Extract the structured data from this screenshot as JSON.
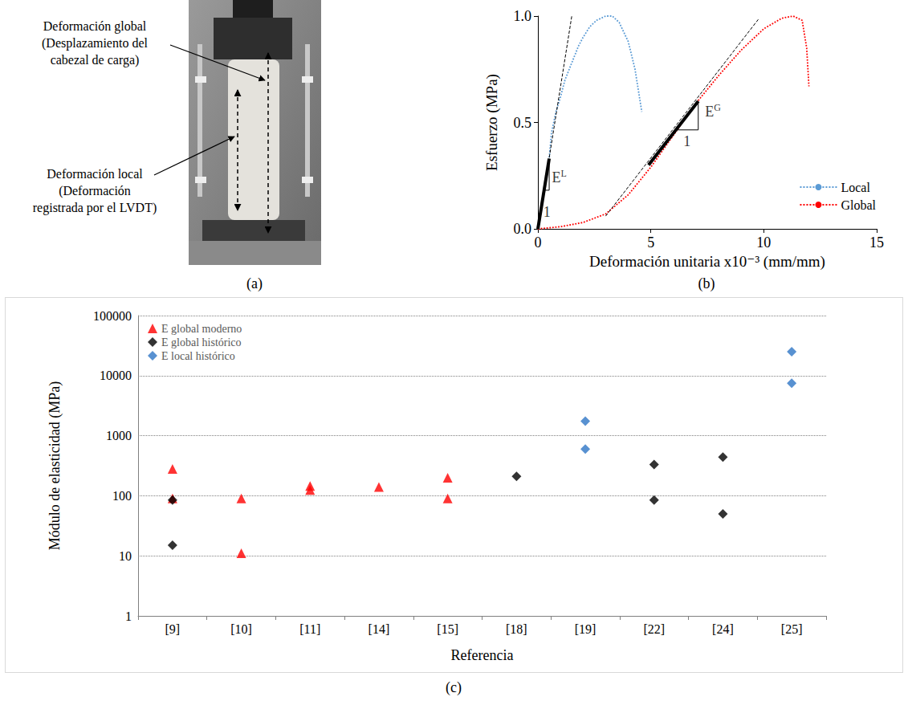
{
  "photo": {
    "caption": "(a)",
    "annotations": [
      {
        "lines": [
          "Deformación global",
          "(Desplazamiento del",
          "cabezal de carga)"
        ]
      },
      {
        "lines": [
          "Deformación local",
          "(Deformación",
          "registrada por el LVDT)"
        ]
      }
    ]
  },
  "chart_data": [
    {
      "type": "line",
      "caption": "(b)",
      "x_label": "Deformación unitaria x10⁻³ (mm/mm)",
      "y_label": "Esfuerzo (MPa)",
      "xlim": [
        0,
        15
      ],
      "xticks": [
        0,
        5,
        10,
        15
      ],
      "ylim": [
        0,
        1
      ],
      "yticks": [
        {
          "value": 0,
          "label": "0.0"
        },
        0.5,
        {
          "value": 1,
          "label": "1.0"
        }
      ],
      "grid": false,
      "legend": "lower right",
      "series": [
        {
          "name": "Local",
          "color": "#5b9bd5",
          "line_style": "dotted",
          "x": [
            0,
            0.5,
            0.6,
            0.8,
            1.0,
            1.2,
            1.5,
            1.8,
            2.0,
            2.3,
            2.6,
            3.0,
            3.3,
            3.6,
            4.0,
            4.3,
            4.6
          ],
          "values": [
            0,
            0.33,
            0.45,
            0.55,
            0.62,
            0.7,
            0.78,
            0.86,
            0.9,
            0.95,
            0.98,
            1.0,
            1.0,
            0.97,
            0.88,
            0.75,
            0.55
          ]
        },
        {
          "name": "Global",
          "color": "#ff0000",
          "line_style": "dotted",
          "x": [
            0,
            1,
            2,
            3,
            4,
            5,
            6,
            7,
            8,
            9,
            10,
            10.8,
            11.3,
            11.7,
            11.9,
            12.0
          ],
          "values": [
            0,
            0.01,
            0.03,
            0.07,
            0.16,
            0.29,
            0.44,
            0.59,
            0.72,
            0.84,
            0.94,
            0.99,
            1.0,
            0.98,
            0.85,
            0.67
          ]
        },
        {
          "color": "#000000",
          "line_style": "dashed",
          "x": [
            0,
            1.5
          ],
          "values": [
            0,
            1.0
          ]
        },
        {
          "color": "#000000",
          "line_style": "dashed",
          "x": [
            3.0,
            9.8
          ],
          "values": [
            0.06,
            0.99
          ]
        },
        {
          "color": "#000000",
          "line_style": "thick",
          "x": [
            0,
            0.5
          ],
          "values": [
            0,
            0.33
          ]
        },
        {
          "color": "#000000",
          "line_style": "thick",
          "x": [
            4.9,
            7.1
          ],
          "values": [
            0.3,
            0.6
          ]
        }
      ],
      "annotations": [
        {
          "text": "E",
          "sup": "L",
          "x": 0.95,
          "y": 0.24
        },
        {
          "text": "1",
          "x": 0.4,
          "y": 0.08
        },
        {
          "text": "E",
          "sup": "G",
          "x": 7.75,
          "y": 0.55
        },
        {
          "text": "1",
          "x": 6.6,
          "y": 0.41
        }
      ]
    },
    {
      "type": "scatter",
      "caption": "(c)",
      "x_label": "Referencia",
      "y_label": "Módulo de elasticidad (MPa)",
      "categories": [
        "[9]",
        "[10]",
        "[11]",
        "[14]",
        "[15]",
        "[18]",
        "[19]",
        "[22]",
        "[24]",
        "[25]"
      ],
      "log": "y",
      "ylim": [
        1,
        100000
      ],
      "yticks": [
        1,
        10,
        100,
        1000,
        10000,
        100000
      ],
      "grid": true,
      "legend": "upper left",
      "series": [
        {
          "name": "E global moderno",
          "color": "#ff0000",
          "marker": "triangle",
          "values": [
            [
              280,
              90
            ],
            [
              90,
              11
            ],
            [
              145,
              125
            ],
            [
              140
            ],
            [
              200,
              90
            ],
            null,
            null,
            null,
            null,
            null
          ]
        },
        {
          "name": "E global histórico",
          "color": "#000000",
          "marker": "diamond",
          "values": [
            [
              85,
              15
            ],
            null,
            null,
            null,
            null,
            [
              210
            ],
            null,
            [
              330,
              85
            ],
            [
              440,
              50
            ],
            null
          ]
        },
        {
          "name": "E local histórico",
          "color": "#2e75c6",
          "marker": "diamond",
          "values": [
            null,
            null,
            null,
            null,
            null,
            null,
            [
              1750,
              600
            ],
            null,
            null,
            [
              25000,
              7500
            ]
          ]
        }
      ]
    }
  ]
}
